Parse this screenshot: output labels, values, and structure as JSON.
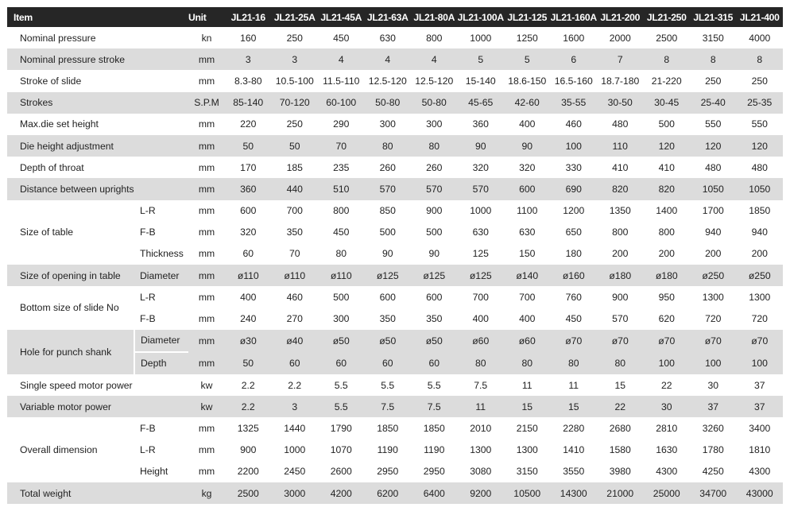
{
  "header": {
    "item": "Item",
    "unit": "Unit",
    "models": [
      "JL21-16",
      "JL21-25A",
      "JL21-45A",
      "JL21-63A",
      "JL21-80A",
      "JL21-100A",
      "JL21-125",
      "JL21-160A",
      "JL21-200",
      "JL21-250",
      "JL21-315",
      "JL21-400"
    ]
  },
  "rows": {
    "nominal_pressure": {
      "label": "Nominal pressure",
      "unit": "kn",
      "values": [
        "160",
        "250",
        "450",
        "630",
        "800",
        "1000",
        "1250",
        "1600",
        "2000",
        "2500",
        "3150",
        "4000"
      ]
    },
    "nominal_pressure_stroke": {
      "label": "Nominal pressure stroke",
      "unit": "mm",
      "values": [
        "3",
        "3",
        "4",
        "4",
        "4",
        "5",
        "5",
        "6",
        "7",
        "8",
        "8",
        "8"
      ]
    },
    "stroke_of_slide": {
      "label": "Stroke of slide",
      "unit": "mm",
      "values": [
        "8.3-80",
        "10.5-100",
        "11.5-110",
        "12.5-120",
        "12.5-120",
        "15-140",
        "18.6-150",
        "16.5-160",
        "18.7-180",
        "21-220",
        "250",
        "250"
      ]
    },
    "strokes": {
      "label": "Strokes",
      "unit": "S.P.M",
      "values": [
        "85-140",
        "70-120",
        "60-100",
        "50-80",
        "50-80",
        "45-65",
        "42-60",
        "35-55",
        "30-50",
        "30-45",
        "25-40",
        "25-35"
      ]
    },
    "max_die_set_height": {
      "label": "Max.die set height",
      "unit": "mm",
      "values": [
        "220",
        "250",
        "290",
        "300",
        "300",
        "360",
        "400",
        "460",
        "480",
        "500",
        "550",
        "550"
      ]
    },
    "die_height_adjustment": {
      "label": "Die height adjustment",
      "unit": "mm",
      "values": [
        "50",
        "50",
        "70",
        "80",
        "80",
        "90",
        "90",
        "100",
        "110",
        "120",
        "120",
        "120"
      ]
    },
    "depth_of_throat": {
      "label": "Depth of throat",
      "unit": "mm",
      "values": [
        "170",
        "185",
        "235",
        "260",
        "260",
        "320",
        "320",
        "330",
        "410",
        "410",
        "480",
        "480"
      ]
    },
    "distance_between_uprights": {
      "label": "Distance between uprights",
      "unit": "mm",
      "values": [
        "360",
        "440",
        "510",
        "570",
        "570",
        "570",
        "600",
        "690",
        "820",
        "820",
        "1050",
        "1050"
      ]
    },
    "size_of_table": {
      "label": "Size of table",
      "lr": {
        "sub": "L-R",
        "unit": "mm",
        "values": [
          "600",
          "700",
          "800",
          "850",
          "900",
          "1000",
          "1100",
          "1200",
          "1350",
          "1400",
          "1700",
          "1850"
        ]
      },
      "fb": {
        "sub": "F-B",
        "unit": "mm",
        "values": [
          "320",
          "350",
          "450",
          "500",
          "500",
          "630",
          "630",
          "650",
          "800",
          "800",
          "940",
          "940"
        ]
      },
      "thickness": {
        "sub": "Thickness",
        "unit": "mm",
        "values": [
          "60",
          "70",
          "80",
          "90",
          "90",
          "125",
          "150",
          "180",
          "200",
          "200",
          "200",
          "200"
        ]
      }
    },
    "size_of_opening": {
      "label": "Size of opening in table",
      "sub": "Diameter",
      "unit": "mm",
      "values": [
        "ø110",
        "ø110",
        "ø110",
        "ø125",
        "ø125",
        "ø125",
        "ø140",
        "ø160",
        "ø180",
        "ø180",
        "ø250",
        "ø250"
      ]
    },
    "bottom_size_of_slide": {
      "label": "Bottom size of slide No",
      "lr": {
        "sub": "L-R",
        "unit": "mm",
        "values": [
          "400",
          "460",
          "500",
          "600",
          "600",
          "700",
          "700",
          "760",
          "900",
          "950",
          "1300",
          "1300"
        ]
      },
      "fb": {
        "sub": "F-B",
        "unit": "mm",
        "values": [
          "240",
          "270",
          "300",
          "350",
          "350",
          "400",
          "400",
          "450",
          "570",
          "620",
          "720",
          "720"
        ]
      }
    },
    "hole_for_punch_shank": {
      "label": "Hole for punch shank",
      "diameter": {
        "sub": "Diameter",
        "unit": "mm",
        "values": [
          "ø30",
          "ø40",
          "ø50",
          "ø50",
          "ø50",
          "ø60",
          "ø60",
          "ø70",
          "ø70",
          "ø70",
          "ø70",
          "ø70"
        ]
      },
      "depth": {
        "sub": "Depth",
        "unit": "mm",
        "values": [
          "50",
          "60",
          "60",
          "60",
          "60",
          "80",
          "80",
          "80",
          "80",
          "100",
          "100",
          "100"
        ]
      }
    },
    "single_speed_motor_power": {
      "label": "Single speed motor power",
      "unit": "kw",
      "values": [
        "2.2",
        "2.2",
        "5.5",
        "5.5",
        "5.5",
        "7.5",
        "11",
        "11",
        "15",
        "22",
        "30",
        "37"
      ]
    },
    "variable_motor_power": {
      "label": "Variable motor power",
      "unit": "kw",
      "values": [
        "2.2",
        "3",
        "5.5",
        "7.5",
        "7.5",
        "11",
        "15",
        "15",
        "22",
        "30",
        "37",
        "37"
      ]
    },
    "overall_dimension": {
      "label": "Overall dimension",
      "fb": {
        "sub": "F-B",
        "unit": "mm",
        "values": [
          "1325",
          "1440",
          "1790",
          "1850",
          "1850",
          "2010",
          "2150",
          "2280",
          "2680",
          "2810",
          "3260",
          "3400"
        ]
      },
      "lr": {
        "sub": "L-R",
        "unit": "mm",
        "values": [
          "900",
          "1000",
          "1070",
          "1190",
          "1190",
          "1300",
          "1300",
          "1410",
          "1580",
          "1630",
          "1780",
          "1810"
        ]
      },
      "height": {
        "sub": "Height",
        "unit": "mm",
        "values": [
          "2200",
          "2450",
          "2600",
          "2950",
          "2950",
          "3080",
          "3150",
          "3550",
          "3980",
          "4300",
          "4250",
          "4300"
        ]
      }
    },
    "total_weight": {
      "label": "Total weight",
      "unit": "kg",
      "values": [
        "2500",
        "3000",
        "4200",
        "6200",
        "6400",
        "9200",
        "10500",
        "14300",
        "21000",
        "25000",
        "34700",
        "43000"
      ]
    }
  }
}
